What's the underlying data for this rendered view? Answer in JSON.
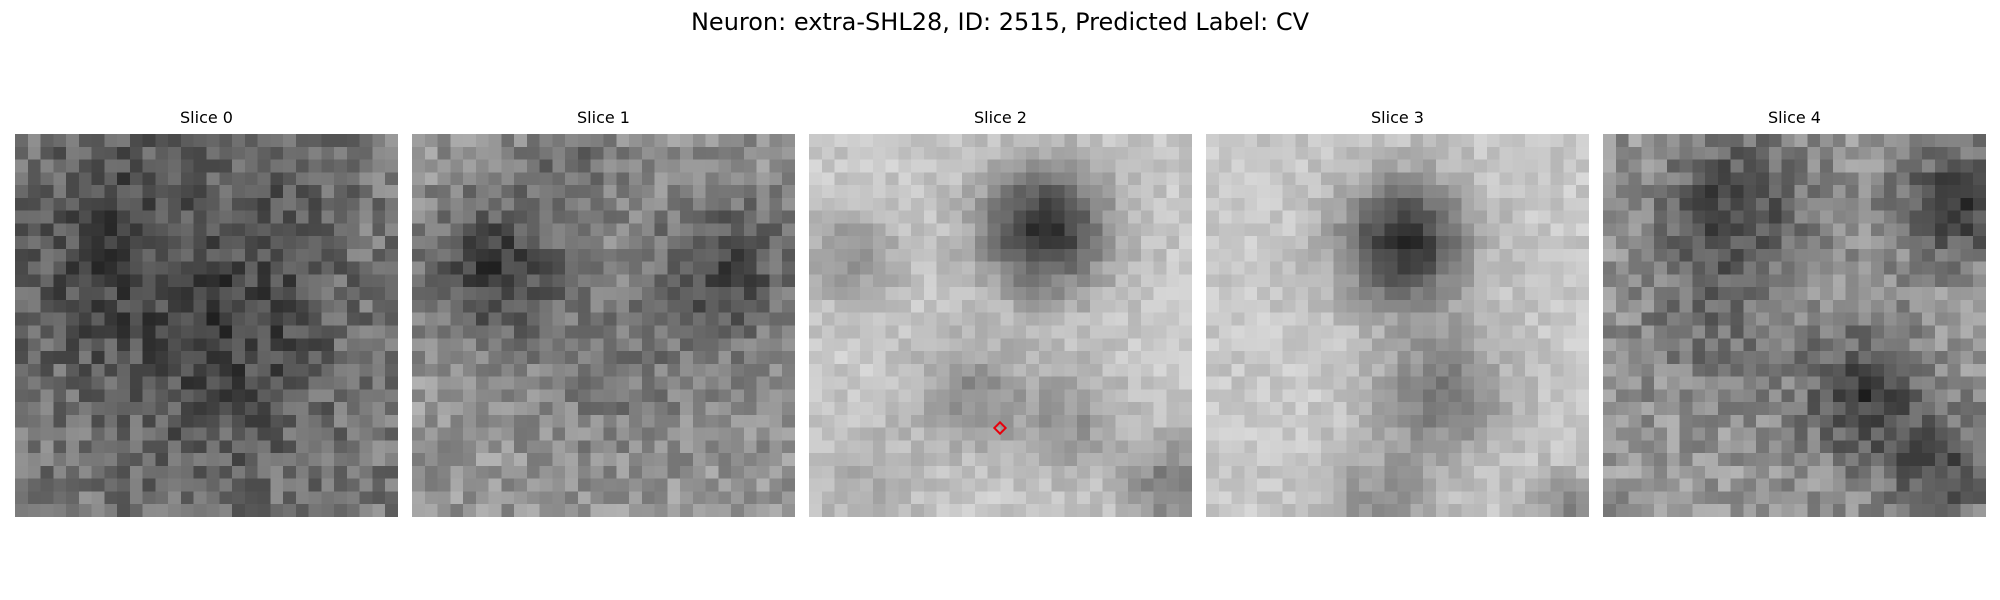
{
  "figure": {
    "title": "Neuron: extra-SHL28, ID: 2515, Predicted Label: CV"
  },
  "slices": [
    {
      "label": "Slice 0",
      "image": "grayscale-microscopy-patch-noisy-dark"
    },
    {
      "label": "Slice 1",
      "image": "grayscale-microscopy-patch-two-dark-blobs"
    },
    {
      "label": "Slice 2",
      "image": "grayscale-microscopy-patch-cell-body-top-center",
      "marker": "red-diamond-marker"
    },
    {
      "label": "Slice 3",
      "image": "grayscale-microscopy-patch-light-with-cell-body"
    },
    {
      "label": "Slice 4",
      "image": "grayscale-microscopy-patch-dark-textured"
    }
  ],
  "colors": {
    "marker": "#e8000b",
    "background": "#ffffff"
  }
}
